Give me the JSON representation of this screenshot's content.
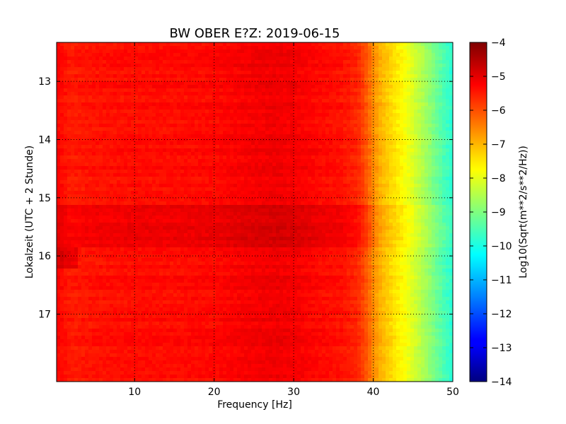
{
  "chart_data": {
    "type": "heatmap",
    "title": "BW OBER E?Z: 2019-06-15",
    "xlabel": "Frequency [Hz]",
    "ylabel": "Lokalzeit (UTC + 2 Stunde)",
    "xlim": [
      0.2,
      50
    ],
    "ylim": [
      12.33,
      18.16
    ],
    "y_inverted": true,
    "x_ticks": [
      10,
      20,
      30,
      40,
      50
    ],
    "x_tick_labels": [
      "10",
      "20",
      "30",
      "40",
      "50"
    ],
    "y_ticks": [
      13,
      14,
      15,
      16,
      17
    ],
    "y_tick_labels": [
      "13",
      "14",
      "15",
      "16",
      "17"
    ],
    "grid": true,
    "grid_style": "dotted",
    "colormap": "jet",
    "colorbar": {
      "label": "Log10(Sqrt(m**2/s**2/Hz))",
      "range": [
        -14,
        -4
      ],
      "ticks": [
        -4,
        -5,
        -6,
        -7,
        -8,
        -9,
        -10,
        -11,
        -12,
        -13,
        -14
      ],
      "tick_labels": [
        "−4",
        "−5",
        "−6",
        "−7",
        "−8",
        "−9",
        "−10",
        "−11",
        "−12",
        "−13",
        "−14"
      ]
    },
    "frequency_profile": {
      "frequency_hz": [
        0,
        2,
        5,
        10,
        15,
        20,
        25,
        28,
        30,
        33,
        36,
        38,
        39,
        40,
        41,
        42,
        43,
        44,
        45,
        46,
        47,
        48,
        49,
        50
      ],
      "log_amplitude": [
        -5.2,
        -5.5,
        -5.4,
        -5.35,
        -5.35,
        -5.3,
        -5.15,
        -5.1,
        -5.15,
        -5.3,
        -5.4,
        -5.6,
        -6.0,
        -6.6,
        -7.0,
        -7.3,
        -7.55,
        -7.8,
        -8.1,
        -8.45,
        -8.8,
        -9.2,
        -9.55,
        -9.85
      ]
    },
    "time_bands": [
      {
        "from": 15.1,
        "to": 15.85,
        "offset": 0.25
      },
      {
        "from": 15.85,
        "to": 16.2,
        "offset": 0.45,
        "max_frequency_hz": 3
      }
    ]
  }
}
